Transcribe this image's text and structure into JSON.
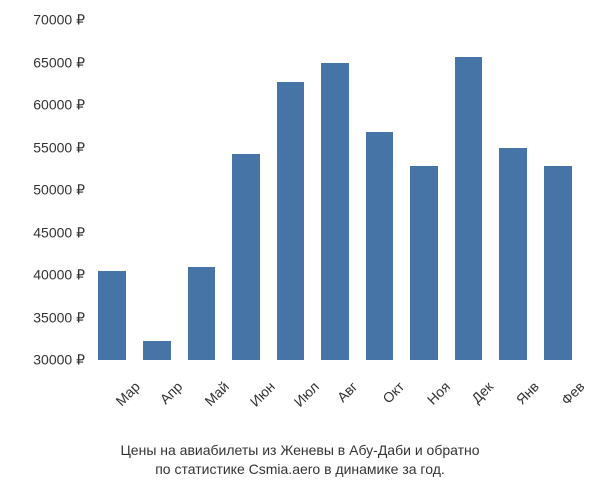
{
  "chart": {
    "type": "bar",
    "categories": [
      "Мар",
      "Апр",
      "Май",
      "Июн",
      "Июл",
      "Авг",
      "Окт",
      "Ноя",
      "Дек",
      "Янв",
      "Фев"
    ],
    "values": [
      40500,
      32200,
      41000,
      54200,
      62700,
      65000,
      56800,
      52800,
      65700,
      55000,
      52800
    ],
    "background_color": "#ffffff",
    "bar_color": "#4674a6",
    "text_color": "#333333",
    "ylim": [
      30000,
      70000
    ],
    "ytick_step": 5000,
    "y_labels": [
      "30000 ₽",
      "35000 ₽",
      "40000 ₽",
      "45000 ₽",
      "50000 ₽",
      "55000 ₽",
      "60000 ₽",
      "65000 ₽",
      "70000 ₽"
    ],
    "y_values": [
      30000,
      35000,
      40000,
      45000,
      50000,
      55000,
      60000,
      65000,
      70000
    ],
    "label_fontsize": 14,
    "caption_fontsize": 14,
    "bar_width": 0.62,
    "x_label_rotation": -45
  },
  "caption": {
    "line1": "Цены на авиабилеты из Женевы в Абу-Даби и обратно",
    "line2": "по статистике Csmia.aero в динамике за год."
  }
}
